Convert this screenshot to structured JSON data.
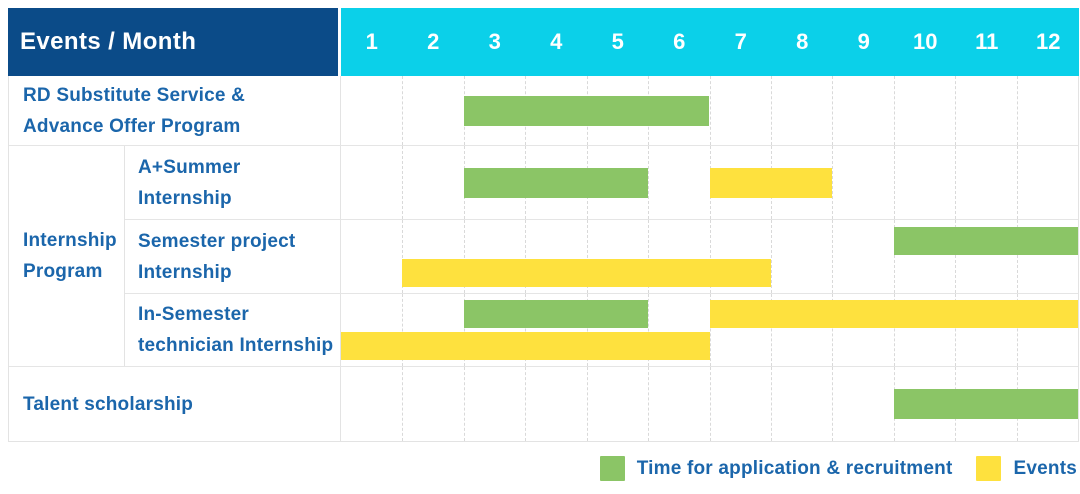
{
  "header": {
    "corner_label": "Events / Month",
    "months": [
      "1",
      "2",
      "3",
      "4",
      "5",
      "6",
      "7",
      "8",
      "9",
      "10",
      "11",
      "12"
    ]
  },
  "colors": {
    "header_blue": "#0b4b88",
    "header_cyan": "#0bd0e9",
    "green": "#8bc566",
    "yellow": "#fee13e",
    "text_blue": "#1b66ab"
  },
  "rows": [
    {
      "type": "single",
      "label_lines": [
        "RD Substitute Service &",
        "Advance Offer Program"
      ],
      "bars": [
        {
          "color": "green",
          "start": 3,
          "end": 6,
          "lane": "mid"
        }
      ]
    },
    {
      "type": "group",
      "group_label_lines": [
        "Internship",
        "Program"
      ],
      "subrows": [
        {
          "label_lines": [
            "A+Summer",
            "Internship"
          ],
          "bars": [
            {
              "color": "green",
              "start": 3,
              "end": 5,
              "lane": "mid"
            },
            {
              "color": "yellow",
              "start": 7,
              "end": 8,
              "lane": "mid"
            }
          ]
        },
        {
          "label_lines": [
            "Semester project",
            "Internship"
          ],
          "bars": [
            {
              "color": "green",
              "start": 10,
              "end": 12,
              "lane": "top"
            },
            {
              "color": "yellow",
              "start": 2,
              "end": 7,
              "lane": "bottom"
            }
          ]
        },
        {
          "label_lines": [
            "In-Semester",
            "technician Internship"
          ],
          "bars": [
            {
              "color": "green",
              "start": 3,
              "end": 5,
              "lane": "top"
            },
            {
              "color": "yellow",
              "start": 7,
              "end": 12,
              "lane": "top"
            },
            {
              "color": "yellow",
              "start": 1,
              "end": 6,
              "lane": "bottom"
            }
          ]
        }
      ]
    },
    {
      "type": "single",
      "label_lines": [
        "Talent scholarship"
      ],
      "bars": [
        {
          "color": "green",
          "start": 10,
          "end": 12,
          "lane": "mid"
        }
      ]
    }
  ],
  "legend": {
    "items": [
      {
        "color": "green",
        "label": "Time for application & recruitment"
      },
      {
        "color": "yellow",
        "label": "Events"
      }
    ]
  },
  "chart_data": {
    "type": "gantt",
    "title": "Events / Month",
    "x_axis": {
      "label": "Month",
      "ticks": [
        1,
        2,
        3,
        4,
        5,
        6,
        7,
        8,
        9,
        10,
        11,
        12
      ],
      "range": [
        1,
        12
      ]
    },
    "grid": true,
    "legend_position": "bottom-right",
    "series_legend": [
      {
        "name": "Time for application & recruitment",
        "color": "#8bc566"
      },
      {
        "name": "Events",
        "color": "#fee13e"
      }
    ],
    "tasks": [
      {
        "row": "RD Substitute Service & Advance Offer Program",
        "group": null,
        "bars": [
          {
            "series": "Time for application & recruitment",
            "start_month": 3,
            "end_month": 6
          }
        ]
      },
      {
        "row": "A+Summer Internship",
        "group": "Internship Program",
        "bars": [
          {
            "series": "Time for application & recruitment",
            "start_month": 3,
            "end_month": 5
          },
          {
            "series": "Events",
            "start_month": 7,
            "end_month": 8
          }
        ]
      },
      {
        "row": "Semester project Internship",
        "group": "Internship Program",
        "bars": [
          {
            "series": "Time for application & recruitment",
            "start_month": 10,
            "end_month": 12
          },
          {
            "series": "Events",
            "start_month": 2,
            "end_month": 7
          }
        ]
      },
      {
        "row": "In-Semester technician Internship",
        "group": "Internship Program",
        "bars": [
          {
            "series": "Time for application & recruitment",
            "start_month": 3,
            "end_month": 5
          },
          {
            "series": "Events",
            "start_month": 7,
            "end_month": 12
          },
          {
            "series": "Events",
            "start_month": 1,
            "end_month": 6
          }
        ]
      },
      {
        "row": "Talent scholarship",
        "group": null,
        "bars": [
          {
            "series": "Time for application & recruitment",
            "start_month": 10,
            "end_month": 12
          }
        ]
      }
    ]
  }
}
